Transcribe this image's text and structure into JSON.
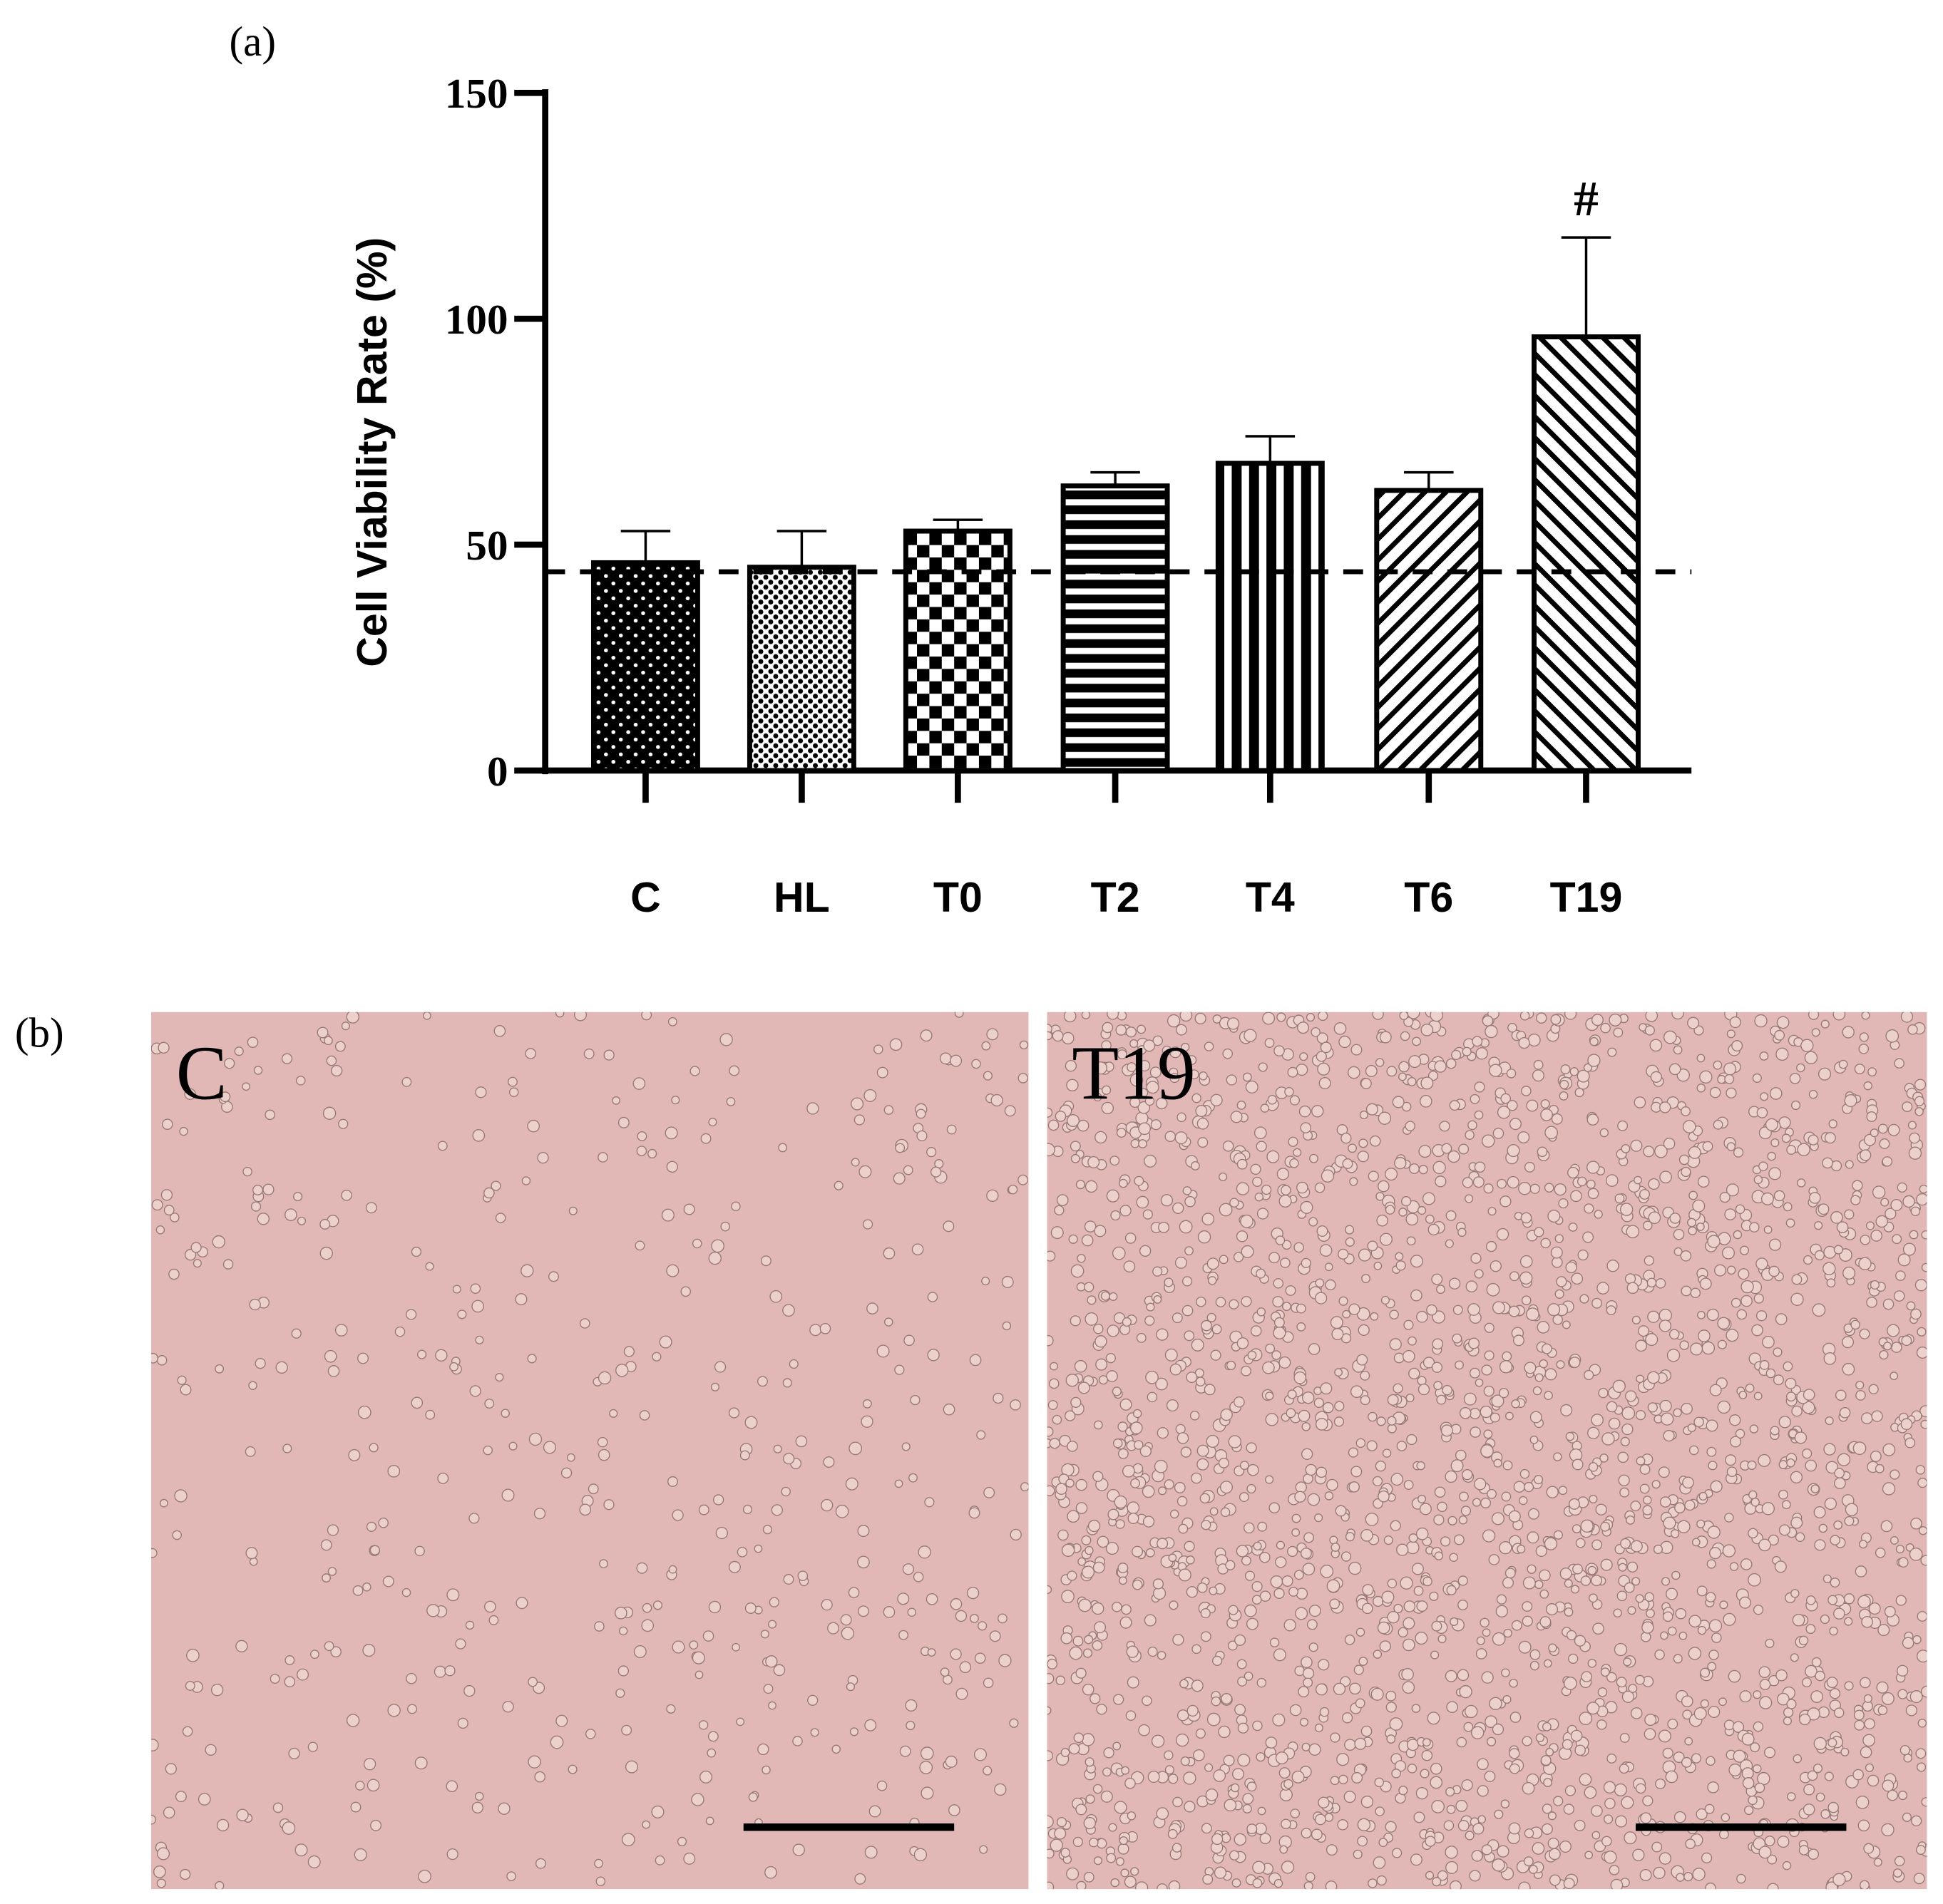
{
  "label_a": "(a)",
  "label_b": "(b)",
  "chart_data": {
    "type": "bar",
    "y_label": "Cell Viability Rate (%)",
    "categories": [
      "C",
      "HL",
      "T0",
      "T2",
      "T4",
      "T6",
      "T19"
    ],
    "values": [
      46,
      45,
      53,
      63,
      68,
      62,
      96
    ],
    "errors": [
      7,
      8,
      2.5,
      3,
      6,
      4,
      22
    ],
    "color": "#000000",
    "reference_line": 44,
    "annotation": {
      "text": "#",
      "category": "T19"
    },
    "ylim": [
      0,
      150
    ],
    "yticks": [
      0,
      50,
      100,
      150
    ]
  },
  "images": [
    {
      "label": "C"
    },
    {
      "label": "T19"
    }
  ]
}
